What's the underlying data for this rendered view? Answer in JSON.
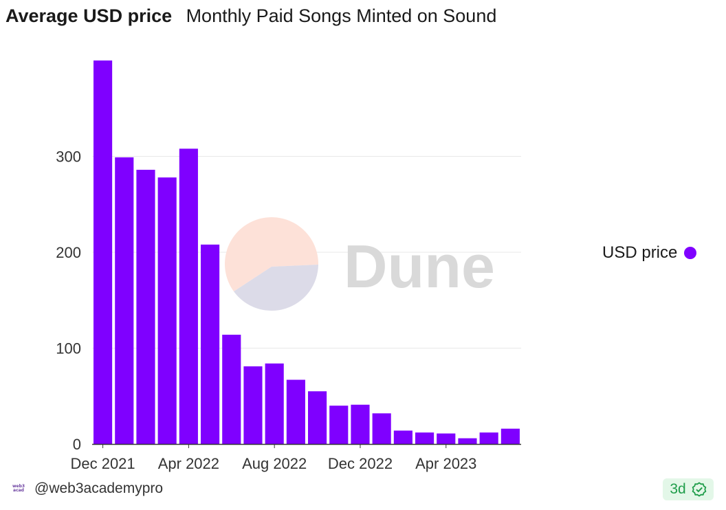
{
  "header": {
    "title": "Average USD price",
    "subtitle": "Monthly Paid Songs Minted on Sound"
  },
  "legend": {
    "label": "USD price"
  },
  "footer": {
    "author": "@web3academypro"
  },
  "badge": {
    "age": "3d",
    "icon": "check-circle-icon"
  },
  "watermark": {
    "text": "Dune"
  },
  "colors": {
    "bar": "#7f00ff",
    "grid": "#e8e8e8",
    "badge_text": "#1f9d4a"
  },
  "chart_data": {
    "type": "bar",
    "categories": [
      "2021-12",
      "2022-01",
      "2022-02",
      "2022-03",
      "2022-04",
      "2022-05",
      "2022-06",
      "2022-07",
      "2022-08",
      "2022-09",
      "2022-10",
      "2022-11",
      "2022-12",
      "2023-01",
      "2023-02",
      "2023-03",
      "2023-04",
      "2023-05",
      "2023-06",
      "2023-07"
    ],
    "series": [
      {
        "name": "USD price",
        "values": [
          400,
          299,
          286,
          278,
          308,
          208,
          114,
          81,
          84,
          67,
          55,
          40,
          41,
          32,
          14,
          12,
          11,
          6,
          12,
          16
        ]
      }
    ],
    "x_ticks": [
      "Dec 2021",
      "Apr 2022",
      "Aug 2022",
      "Dec 2022",
      "Apr 2023"
    ],
    "y_ticks": [
      0,
      100,
      200,
      300
    ],
    "ylim": [
      0,
      400
    ],
    "grid": true,
    "legend_position": "right"
  }
}
